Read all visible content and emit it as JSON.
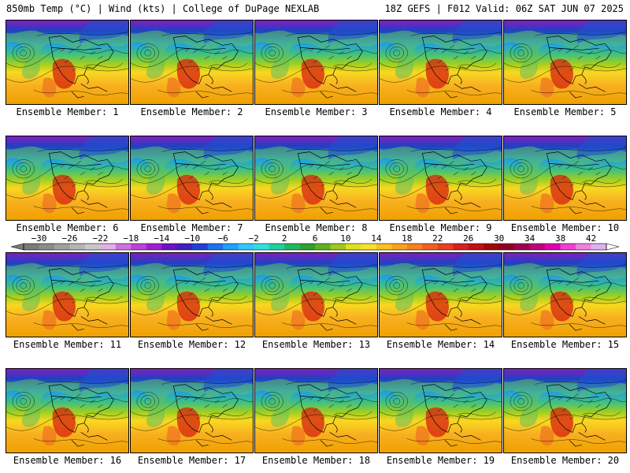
{
  "header": {
    "left": "850mb Temp (°C) | Wind (kts) | College of DuPage NEXLAB",
    "right": "18Z GEFS | F012 Valid: 06Z SAT JUN 07 2025"
  },
  "panels": [
    "Ensemble Member: 1",
    "Ensemble Member: 2",
    "Ensemble Member: 3",
    "Ensemble Member: 4",
    "Ensemble Member: 5",
    "Ensemble Member: 6",
    "Ensemble Member: 7",
    "Ensemble Member: 8",
    "Ensemble Member: 9",
    "Ensemble Member: 10",
    "Ensemble Member: 11",
    "Ensemble Member: 12",
    "Ensemble Member: 13",
    "Ensemble Member: 14",
    "Ensemble Member: 15",
    "Ensemble Member: 16",
    "Ensemble Member: 17",
    "Ensemble Member: 18",
    "Ensemble Member: 19",
    "Ensemble Member: 20"
  ],
  "colorbar": {
    "ticks": [
      "−30",
      "−26",
      "−22",
      "−18",
      "−14",
      "−10",
      "−6",
      "−2",
      "2",
      "6",
      "10",
      "14",
      "18",
      "22",
      "26",
      "30",
      "34",
      "38",
      "42"
    ],
    "colors": [
      "#7a7a7a",
      "#8c8c8c",
      "#a0a0a0",
      "#b4b4b4",
      "#c8c8c8",
      "#e0b0e8",
      "#d070e0",
      "#c040d8",
      "#a020d0",
      "#7010c8",
      "#4020c0",
      "#2040d8",
      "#2070f0",
      "#20a0ff",
      "#30c8ff",
      "#30e0e0",
      "#20d0a0",
      "#20b860",
      "#30a030",
      "#60b020",
      "#a0c820",
      "#e0e020",
      "#f8e030",
      "#f8c020",
      "#f8a020",
      "#f88020",
      "#f06020",
      "#e84020",
      "#d82020",
      "#c01010",
      "#a00808",
      "#900020",
      "#a00050",
      "#c00080",
      "#e000b0",
      "#f040d0",
      "#f080e0",
      "#e0b0f0"
    ]
  },
  "map_colors": {
    "land_warm": "#f0a000",
    "hot": "#d82010",
    "cold_north": "#2040c0",
    "polar": "#8020c0",
    "ocean_mid": "#40c080",
    "subtropic": "#f8d820"
  }
}
